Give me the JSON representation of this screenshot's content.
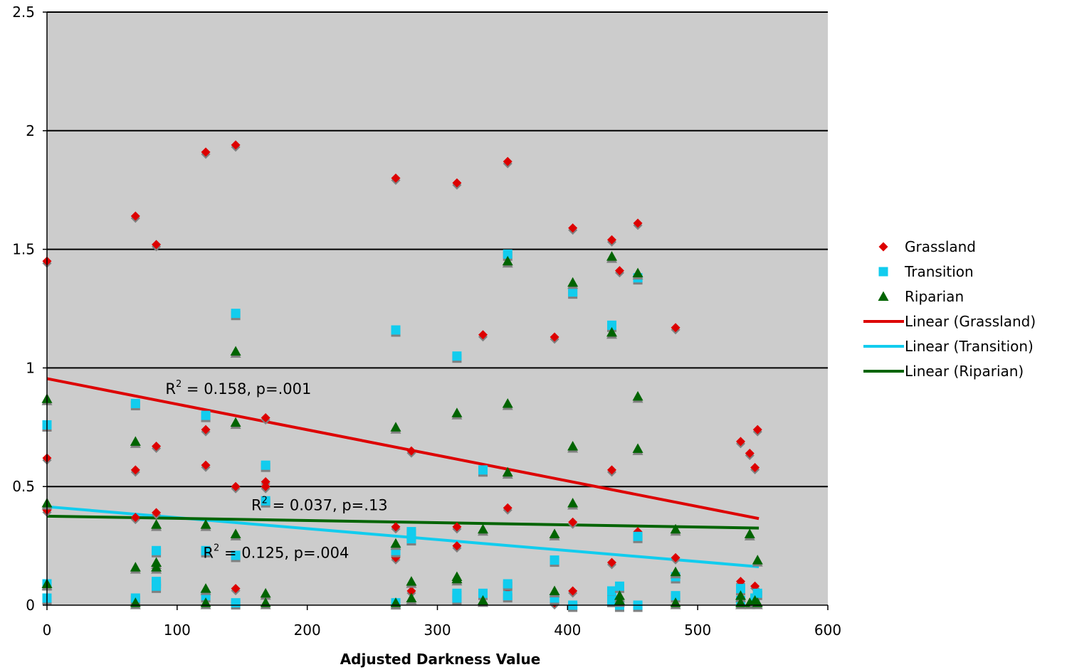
{
  "chart_data": {
    "type": "scatter",
    "xlabel": "Adjusted Darkness Value",
    "ylabel": "",
    "xlim": [
      0,
      600
    ],
    "ylim": [
      0,
      2.5
    ],
    "xticks": [
      "0",
      "100",
      "200",
      "300",
      "400",
      "500",
      "600"
    ],
    "yticks": [
      "0",
      "0.5",
      "1",
      "1.5",
      "2",
      "2.5"
    ],
    "grid": "horizontal",
    "legend_position": "right",
    "plot_background": "#cccccc",
    "series": [
      {
        "name": "Grassland",
        "marker": "diamond",
        "color": "#dd0000",
        "points": [
          [
            0,
            1.45
          ],
          [
            0,
            0.62
          ],
          [
            0,
            0.4
          ],
          [
            68,
            1.64
          ],
          [
            68,
            0.57
          ],
          [
            68,
            0.37
          ],
          [
            84,
            1.52
          ],
          [
            84,
            0.67
          ],
          [
            84,
            0.39
          ],
          [
            122,
            1.91
          ],
          [
            122,
            0.74
          ],
          [
            122,
            0.59
          ],
          [
            145,
            1.94
          ],
          [
            145,
            0.5
          ],
          [
            145,
            0.07
          ],
          [
            168,
            0.79
          ],
          [
            168,
            0.52
          ],
          [
            168,
            0.5
          ],
          [
            268,
            1.8
          ],
          [
            268,
            0.33
          ],
          [
            268,
            0.2
          ],
          [
            280,
            0.65
          ],
          [
            280,
            0.06
          ],
          [
            315,
            1.78
          ],
          [
            315,
            0.33
          ],
          [
            315,
            0.25
          ],
          [
            335,
            1.14
          ],
          [
            354,
            1.87
          ],
          [
            354,
            0.41
          ],
          [
            354,
            0.07
          ],
          [
            390,
            1.13
          ],
          [
            390,
            0.01
          ],
          [
            404,
            1.59
          ],
          [
            404,
            0.35
          ],
          [
            404,
            0.06
          ],
          [
            434,
            1.54
          ],
          [
            434,
            0.57
          ],
          [
            434,
            0.18
          ],
          [
            440,
            1.41
          ],
          [
            454,
            1.61
          ],
          [
            454,
            0.31
          ],
          [
            483,
            1.17
          ],
          [
            483,
            0.2
          ],
          [
            533,
            0.69
          ],
          [
            533,
            0.1
          ],
          [
            540,
            0.64
          ],
          [
            544,
            0.58
          ],
          [
            544,
            0.08
          ],
          [
            546,
            0.74
          ]
        ]
      },
      {
        "name": "Transition",
        "marker": "square",
        "color": "#11ccee",
        "points": [
          [
            0,
            0.76
          ],
          [
            0,
            0.09
          ],
          [
            0,
            0.03
          ],
          [
            68,
            0.85
          ],
          [
            68,
            0.03
          ],
          [
            84,
            0.23
          ],
          [
            84,
            0.1
          ],
          [
            84,
            0.08
          ],
          [
            122,
            0.8
          ],
          [
            122,
            0.23
          ],
          [
            122,
            0.04
          ],
          [
            145,
            1.23
          ],
          [
            145,
            0.21
          ],
          [
            145,
            0.01
          ],
          [
            168,
            0.59
          ],
          [
            168,
            0.44
          ],
          [
            268,
            1.16
          ],
          [
            268,
            0.23
          ],
          [
            268,
            0.01
          ],
          [
            280,
            0.31
          ],
          [
            280,
            0.28
          ],
          [
            315,
            1.05
          ],
          [
            315,
            0.05
          ],
          [
            315,
            0.03
          ],
          [
            335,
            0.57
          ],
          [
            335,
            0.05
          ],
          [
            354,
            1.48
          ],
          [
            354,
            0.09
          ],
          [
            354,
            0.04
          ],
          [
            390,
            0.19
          ],
          [
            390,
            0.03
          ],
          [
            404,
            1.32
          ],
          [
            404,
            0.0
          ],
          [
            434,
            1.18
          ],
          [
            434,
            0.06
          ],
          [
            434,
            0.02
          ],
          [
            440,
            0.08
          ],
          [
            440,
            0.0
          ],
          [
            454,
            1.38
          ],
          [
            454,
            0.29
          ],
          [
            454,
            0.0
          ],
          [
            483,
            0.12
          ],
          [
            483,
            0.04
          ],
          [
            533,
            0.07
          ],
          [
            533,
            0.02
          ],
          [
            544,
            0.03
          ],
          [
            546,
            0.05
          ]
        ]
      },
      {
        "name": "Riparian",
        "marker": "triangle",
        "color": "#006400",
        "points": [
          [
            0,
            0.87
          ],
          [
            0,
            0.43
          ],
          [
            0,
            0.09
          ],
          [
            68,
            0.69
          ],
          [
            68,
            0.16
          ],
          [
            68,
            0.01
          ],
          [
            84,
            0.34
          ],
          [
            84,
            0.18
          ],
          [
            84,
            0.16
          ],
          [
            122,
            0.34
          ],
          [
            122,
            0.07
          ],
          [
            122,
            0.01
          ],
          [
            145,
            1.07
          ],
          [
            145,
            0.77
          ],
          [
            145,
            0.3
          ],
          [
            168,
            0.05
          ],
          [
            168,
            0.01
          ],
          [
            268,
            0.75
          ],
          [
            268,
            0.26
          ],
          [
            268,
            0.01
          ],
          [
            280,
            0.1
          ],
          [
            280,
            0.03
          ],
          [
            315,
            0.81
          ],
          [
            315,
            0.12
          ],
          [
            315,
            0.11
          ],
          [
            335,
            0.32
          ],
          [
            335,
            0.02
          ],
          [
            354,
            1.45
          ],
          [
            354,
            0.85
          ],
          [
            354,
            0.56
          ],
          [
            390,
            0.3
          ],
          [
            390,
            0.06
          ],
          [
            404,
            1.36
          ],
          [
            404,
            0.67
          ],
          [
            404,
            0.43
          ],
          [
            434,
            1.47
          ],
          [
            434,
            1.15
          ],
          [
            440,
            0.04
          ],
          [
            440,
            0.02
          ],
          [
            454,
            1.4
          ],
          [
            454,
            0.88
          ],
          [
            454,
            0.66
          ],
          [
            483,
            0.32
          ],
          [
            483,
            0.14
          ],
          [
            483,
            0.01
          ],
          [
            533,
            0.04
          ],
          [
            533,
            0.01
          ],
          [
            540,
            0.3
          ],
          [
            540,
            0.01
          ],
          [
            544,
            0.02
          ],
          [
            546,
            0.19
          ],
          [
            546,
            0.01
          ]
        ]
      }
    ],
    "trendlines": [
      {
        "name": "Linear (Grassland)",
        "color": "#dd0000",
        "x": [
          0,
          547
        ],
        "y": [
          0.955,
          0.365
        ],
        "annotation": {
          "text": "R",
          "sup": "2",
          "rest": " = 0.158, p=.001",
          "x": 91,
          "y": 0.89
        }
      },
      {
        "name": "Linear (Transition)",
        "color": "#11ccee",
        "x": [
          0,
          547
        ],
        "y": [
          0.415,
          0.162
        ],
        "annotation": {
          "text": "R",
          "sup": "2",
          "rest": " = 0.125, p=.004",
          "x": 120,
          "y": 0.2
        }
      },
      {
        "name": "Linear (Riparian)",
        "color": "#006400",
        "x": [
          0,
          547
        ],
        "y": [
          0.375,
          0.325
        ],
        "annotation": {
          "text": "R",
          "sup": "2",
          "rest": " = 0.037, p=.13",
          "x": 157,
          "y": 0.4
        }
      }
    ]
  }
}
